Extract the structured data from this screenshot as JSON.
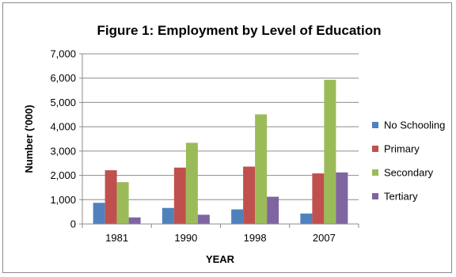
{
  "chart_data": {
    "type": "bar",
    "title": "Figure 1: Employment by Level of Education",
    "xlabel": "YEAR",
    "ylabel": "Number ('000)",
    "categories": [
      "1981",
      "1990",
      "1998",
      "2007"
    ],
    "series": [
      {
        "name": "No Schooling",
        "color": "#4f81bd",
        "values": [
          870,
          660,
          600,
          430
        ]
      },
      {
        "name": "Primary",
        "color": "#c0504d",
        "values": [
          2210,
          2320,
          2360,
          2080
        ]
      },
      {
        "name": "Secondary",
        "color": "#9bbb59",
        "values": [
          1720,
          3340,
          4510,
          5930
        ]
      },
      {
        "name": "Tertiary",
        "color": "#8064a2",
        "values": [
          270,
          380,
          1120,
          2120
        ]
      }
    ],
    "ylim": [
      0,
      7000
    ],
    "yticks": [
      0,
      1000,
      2000,
      3000,
      4000,
      5000,
      6000,
      7000
    ],
    "ytick_labels": [
      "0",
      "1,000",
      "2,000",
      "3,000",
      "4,000",
      "5,000",
      "6,000",
      "7,000"
    ],
    "grid": true,
    "legend": "right"
  }
}
